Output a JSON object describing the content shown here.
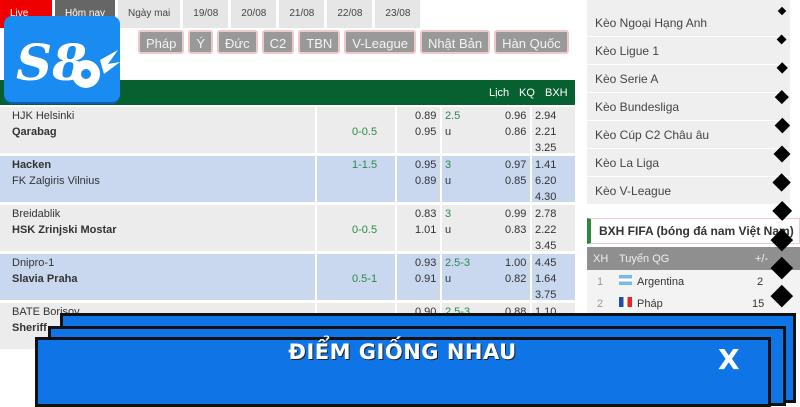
{
  "date_tabs": [
    "Live",
    "Hôm nay",
    "Ngày mai",
    "19/08",
    "20/08",
    "21/08",
    "22/08",
    "23/08"
  ],
  "league_tabs": [
    "Pháp",
    "Ý",
    "Đức",
    "C2",
    "TBN",
    "V-League",
    "Nhật Bản",
    "Hàn Quốc"
  ],
  "logo": {
    "text": "S8"
  },
  "table_header": {
    "lich": "Lịch",
    "kq": "KQ",
    "bxh": "BXH"
  },
  "matches": [
    {
      "home": "HJK Helsinki",
      "away": "Qarabag",
      "handicap": "0-0.5",
      "odds1": [
        "0.89",
        "0.95"
      ],
      "ou": [
        "2.5",
        "u"
      ],
      "odds2": [
        "0.96",
        "0.86"
      ],
      "x12": [
        "2.94",
        "2.21",
        "3.25"
      ]
    },
    {
      "home": "Hacken",
      "away": "FK Zalgiris Vilnius",
      "handicap": "1-1.5",
      "odds1": [
        "0.95",
        "0.89"
      ],
      "ou": [
        "3",
        "u"
      ],
      "odds2": [
        "0.97",
        "0.85"
      ],
      "x12": [
        "1.41",
        "6.20",
        "4.30"
      ]
    },
    {
      "home": "Breidablik",
      "away": "HSK Zrinjski Mostar",
      "handicap": "0-0.5",
      "odds1": [
        "0.83",
        "1.01"
      ],
      "ou": [
        "3",
        "u"
      ],
      "odds2": [
        "0.99",
        "0.83"
      ],
      "x12": [
        "2.78",
        "2.22",
        "3.45"
      ]
    },
    {
      "home": "Dnipro-1",
      "away": "Slavia Praha",
      "handicap": "0.5-1",
      "odds1": [
        "0.93",
        "0.91"
      ],
      "ou": [
        "2.5-3",
        "u"
      ],
      "odds2": [
        "1.00",
        "0.82"
      ],
      "x12": [
        "4.45",
        "1.64",
        "3.75"
      ]
    },
    {
      "home": "BATE Borisov",
      "away": "Sheriff",
      "handicap": "",
      "odds1": [
        "0.90",
        ""
      ],
      "ou": [
        "2.5-3",
        ""
      ],
      "odds2": [
        "0.88",
        ""
      ],
      "x12": [
        "1.10",
        "",
        ""
      ]
    }
  ],
  "sidebar": {
    "items": [
      "Kèo Ngoại Hạng Anh",
      "Kèo Ligue 1",
      "Kèo Serie A",
      "Kèo Bundesliga",
      "Kèo Cúp C2 Châu âu",
      "Kèo La Liga",
      "Kèo V-League"
    ]
  },
  "fifa": {
    "title": "BXH FIFA (bóng đá nam Việt Nam)",
    "headers": {
      "rank": "XH",
      "team": "Tuyển QG",
      "diff": "+/-"
    },
    "rows": [
      {
        "rank": "1",
        "team": "Argentina",
        "diff": "2"
      },
      {
        "rank": "2",
        "team": "Pháp",
        "diff": "15"
      }
    ]
  },
  "banner": {
    "title": "ĐIỂM GIỐNG NHAU",
    "close": "X"
  },
  "colors": {
    "green_header": "#06602f",
    "banner_blue": "#0f74e6",
    "accent_red": "#ee0000"
  }
}
